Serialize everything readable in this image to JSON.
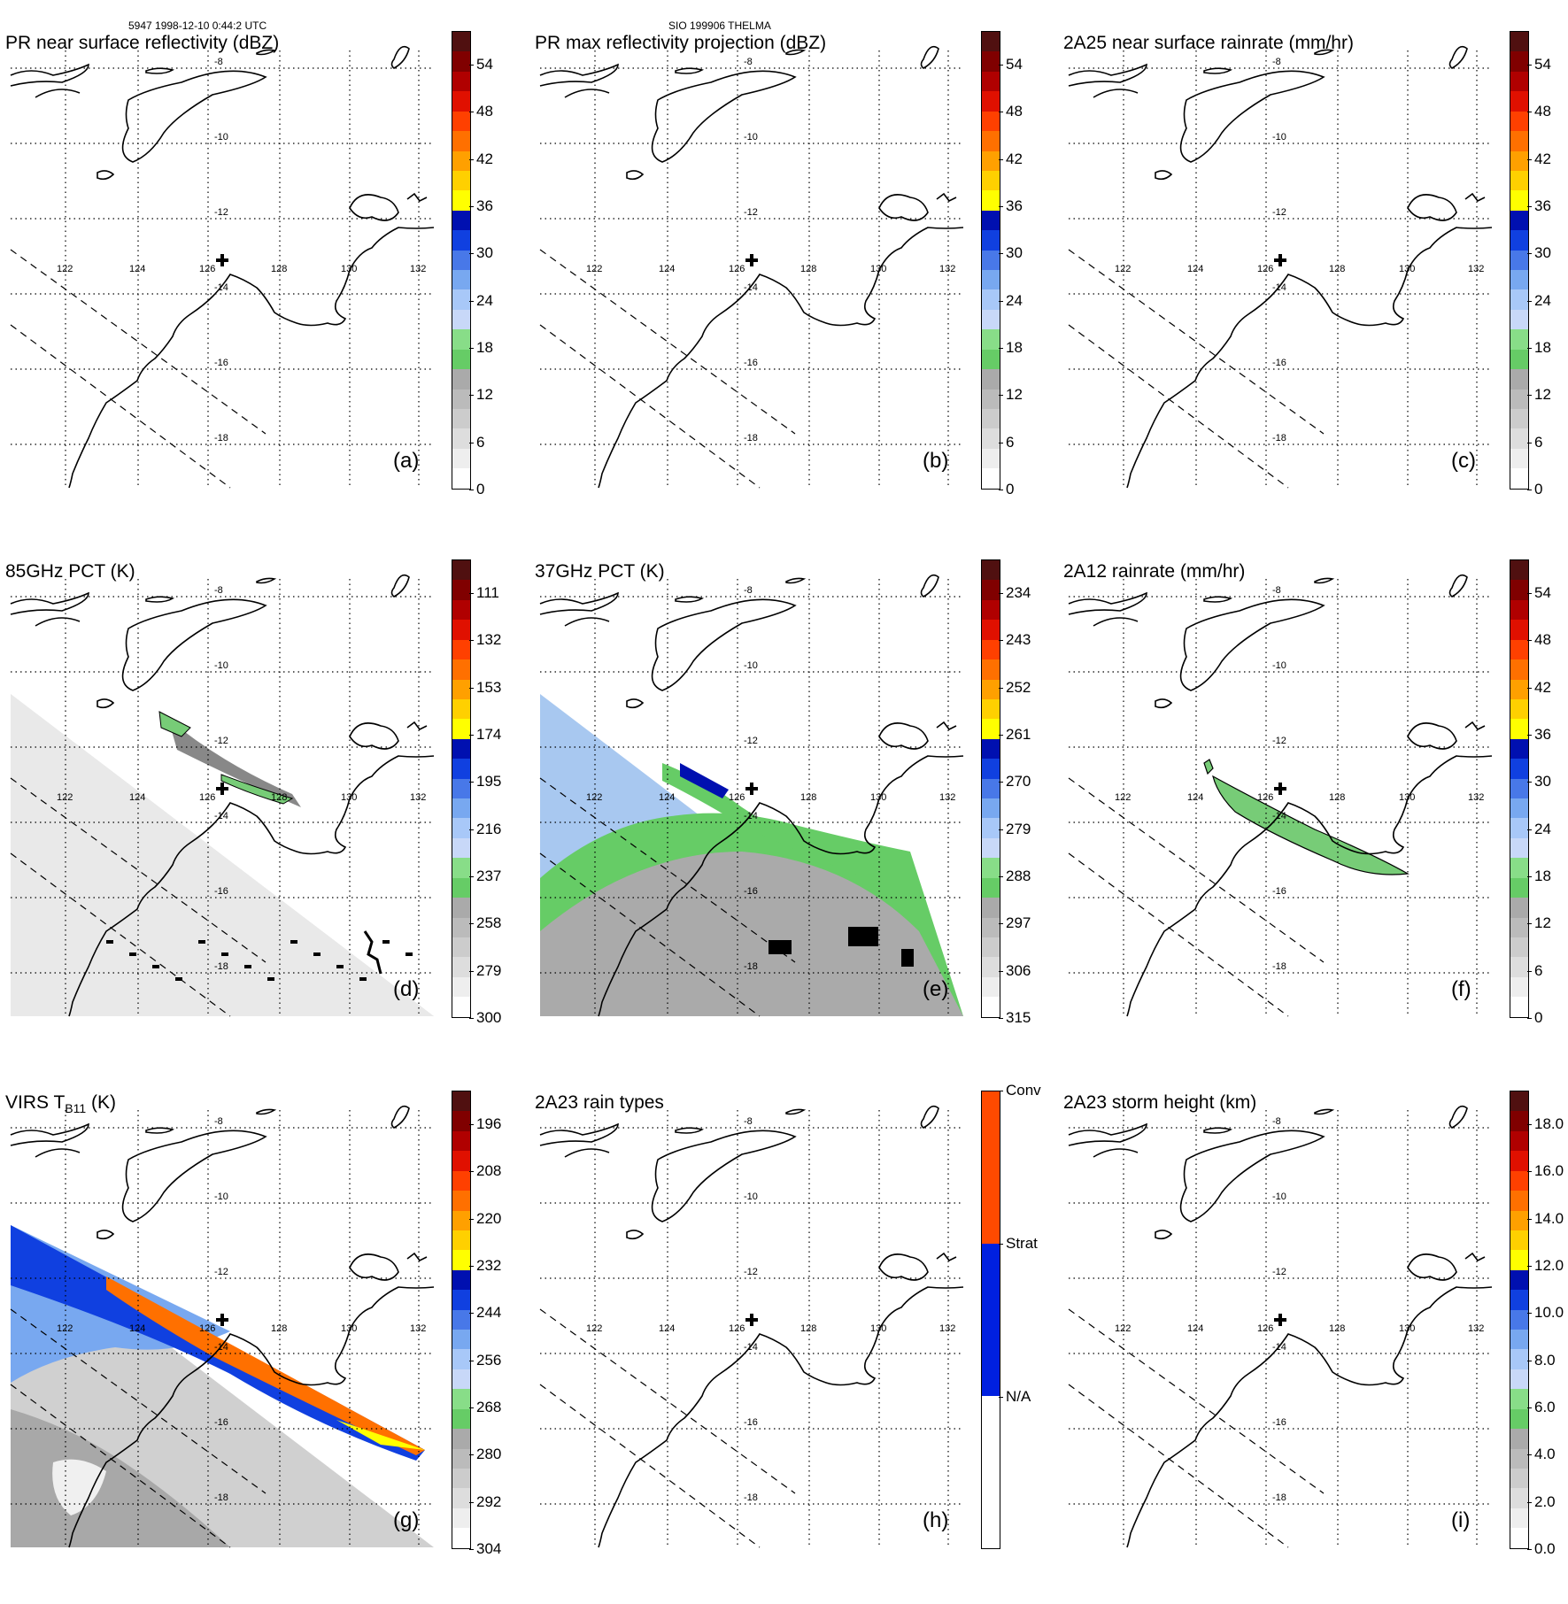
{
  "header": {
    "orbit_time": "5947 1998-12-10 0:44:2 UTC",
    "storm": "SIO 199906 THELMA"
  },
  "map": {
    "lon_labels": [
      "122",
      "124",
      "126",
      "128",
      "130",
      "132"
    ],
    "lat_labels": [
      "-8",
      "-10",
      "-12",
      "-14",
      "-16",
      "-18"
    ],
    "storm_center_marker": "plus-icon"
  },
  "palettes": {
    "std": [
      "#ffffff",
      "#eeeeee",
      "#dddddd",
      "#cccccc",
      "#bbbbbb",
      "#aaaaaa",
      "#66cc66",
      "#88dd88",
      "#c8d8f8",
      "#a8c8f8",
      "#78a8f0",
      "#4878e8",
      "#1040e0",
      "#0010b0",
      "#ffff00",
      "#ffd000",
      "#ffa000",
      "#ff7000",
      "#ff4000",
      "#e01000",
      "#b00000",
      "#800000",
      "#501010"
    ],
    "raintype": [
      "#ffffff",
      "#0020e0",
      "#ff4a00"
    ]
  },
  "panels": [
    {
      "id": "a",
      "title": "PR near surface reflectivity (dBZ)",
      "label": "(a)",
      "ticks": [
        "54",
        "48",
        "42",
        "36",
        "30",
        "24",
        "18",
        "12",
        "6",
        "0"
      ],
      "palette": "std",
      "colorbar_reversed": false,
      "overlay": "none"
    },
    {
      "id": "b",
      "title": "PR max reflectivity projection (dBZ)",
      "label": "(b)",
      "ticks": [
        "54",
        "48",
        "42",
        "36",
        "30",
        "24",
        "18",
        "12",
        "6",
        "0"
      ],
      "palette": "std",
      "colorbar_reversed": false,
      "overlay": "none"
    },
    {
      "id": "c",
      "title": "2A25 near surface rainrate (mm/hr)",
      "label": "(c)",
      "ticks": [
        "54",
        "48",
        "42",
        "36",
        "30",
        "24",
        "18",
        "12",
        "6",
        "0"
      ],
      "palette": "std",
      "colorbar_reversed": false,
      "overlay": "none"
    },
    {
      "id": "d",
      "title": "85GHz PCT (K)",
      "label": "(d)",
      "ticks": [
        "111",
        "132",
        "153",
        "174",
        "195",
        "216",
        "237",
        "258",
        "279",
        "300"
      ],
      "palette": "std",
      "colorbar_reversed": true,
      "overlay": "pct85"
    },
    {
      "id": "e",
      "title": "37GHz PCT (K)",
      "label": "(e)",
      "ticks": [
        "234",
        "243",
        "252",
        "261",
        "270",
        "279",
        "288",
        "297",
        "306",
        "315"
      ],
      "palette": "std",
      "colorbar_reversed": true,
      "overlay": "pct37"
    },
    {
      "id": "f",
      "title": "2A12 rainrate (mm/hr)",
      "label": "(f)",
      "ticks": [
        "54",
        "48",
        "42",
        "36",
        "30",
        "24",
        "18",
        "12",
        "6",
        "0"
      ],
      "palette": "std",
      "colorbar_reversed": false,
      "overlay": "rain2a12"
    },
    {
      "id": "g",
      "title_main": "VIRS T",
      "title_sub": "B11",
      "title_unit": " (K)",
      "label": "(g)",
      "ticks": [
        "196",
        "208",
        "220",
        "232",
        "244",
        "256",
        "268",
        "280",
        "292",
        "304"
      ],
      "palette": "std",
      "colorbar_reversed": true,
      "overlay": "virs"
    },
    {
      "id": "h",
      "title": "2A23 rain types",
      "label": "(h)",
      "ticks": [
        "Conv",
        "Strat",
        "N/A"
      ],
      "palette": "raintype",
      "colorbar_reversed": false,
      "overlay": "none"
    },
    {
      "id": "i",
      "title": "2A23 storm height (km)",
      "label": "(i)",
      "ticks": [
        "18.0",
        "16.0",
        "14.0",
        "12.0",
        "10.0",
        "8.0",
        "6.0",
        "4.0",
        "2.0",
        "0.0"
      ],
      "palette": "std",
      "colorbar_reversed": false,
      "overlay": "none"
    }
  ]
}
